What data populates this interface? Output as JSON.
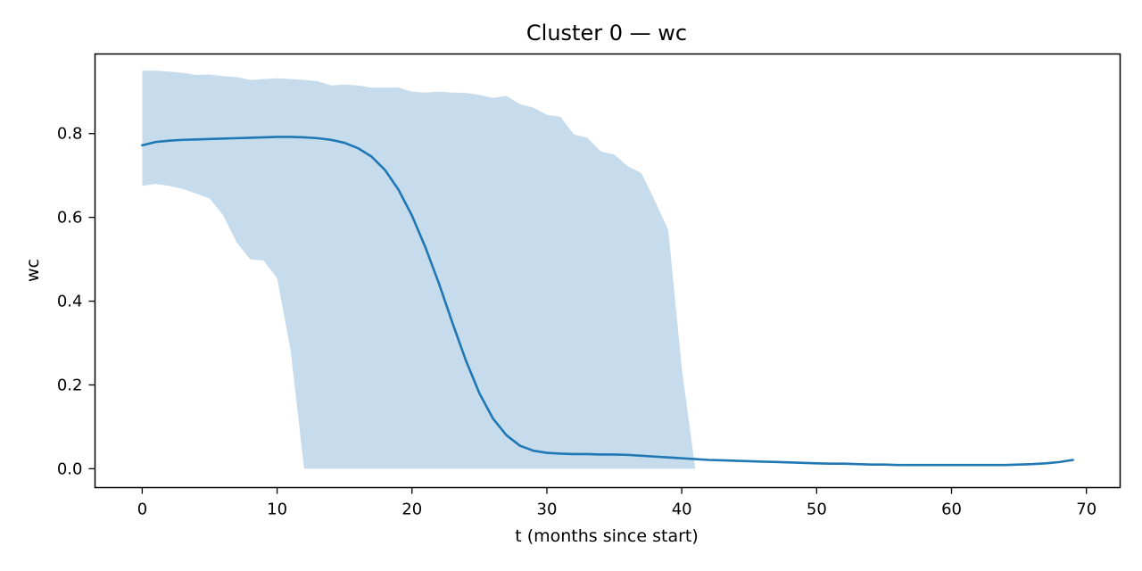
{
  "chart_data": {
    "type": "line",
    "title": "Cluster 0 — wc",
    "xlabel": "t (months since start)",
    "ylabel": "wc",
    "xlim": [
      -3.5,
      72.5
    ],
    "ylim": [
      -0.045,
      0.99
    ],
    "xticks": [
      0,
      10,
      20,
      30,
      40,
      50,
      60,
      70
    ],
    "yticks": [
      0.0,
      0.2,
      0.4,
      0.6,
      0.8
    ],
    "ytick_labels": [
      "0.0",
      "0.2",
      "0.4",
      "0.6",
      "0.8"
    ],
    "grid": false,
    "legend": "none",
    "colors": {
      "line": "#1f77b4",
      "band": "#c6dbec",
      "axes": "#000000"
    },
    "series": [
      {
        "type": "band",
        "x": [
          0,
          1,
          2,
          3,
          4,
          5,
          6,
          7,
          8,
          9,
          10,
          11,
          12,
          13,
          14,
          15,
          16,
          17,
          18,
          19,
          20,
          21,
          22,
          23,
          24,
          25,
          26,
          27,
          28,
          29,
          30,
          31,
          32,
          33,
          34,
          35,
          36,
          37,
          38,
          39,
          40,
          41
        ],
        "upper": [
          0.95,
          0.95,
          0.948,
          0.945,
          0.94,
          0.941,
          0.937,
          0.935,
          0.928,
          0.93,
          0.932,
          0.93,
          0.928,
          0.925,
          0.915,
          0.917,
          0.915,
          0.91,
          0.91,
          0.91,
          0.9,
          0.898,
          0.9,
          0.898,
          0.897,
          0.892,
          0.885,
          0.89,
          0.87,
          0.862,
          0.845,
          0.84,
          0.798,
          0.79,
          0.757,
          0.75,
          0.722,
          0.706,
          0.64,
          0.57,
          0.24,
          0.0
        ],
        "lower": [
          0.675,
          0.68,
          0.675,
          0.668,
          0.657,
          0.645,
          0.605,
          0.54,
          0.5,
          0.497,
          0.455,
          0.283,
          0.0,
          0.0,
          0.0,
          0.0,
          0.0,
          0.0,
          0.0,
          0.0,
          0.0,
          0.0,
          0.0,
          0.0,
          0.0,
          0.0,
          0.0,
          0.0,
          0.0,
          0.0,
          0.0,
          0.0,
          0.0,
          0.0,
          0.0,
          0.0,
          0.0,
          0.0,
          0.0,
          0.0,
          0.0,
          0.0
        ]
      },
      {
        "type": "line",
        "x": [
          0,
          1,
          2,
          3,
          4,
          5,
          6,
          7,
          8,
          9,
          10,
          11,
          12,
          13,
          14,
          15,
          16,
          17,
          18,
          19,
          20,
          21,
          22,
          23,
          24,
          25,
          26,
          27,
          28,
          29,
          30,
          31,
          32,
          33,
          34,
          35,
          36,
          37,
          38,
          39,
          40,
          41,
          42,
          43,
          44,
          45,
          46,
          47,
          48,
          49,
          50,
          51,
          52,
          53,
          54,
          55,
          56,
          57,
          58,
          59,
          60,
          61,
          62,
          63,
          64,
          65,
          66,
          67,
          68,
          69
        ],
        "values": [
          0.772,
          0.78,
          0.783,
          0.785,
          0.786,
          0.787,
          0.788,
          0.789,
          0.79,
          0.791,
          0.792,
          0.792,
          0.791,
          0.789,
          0.785,
          0.778,
          0.765,
          0.745,
          0.713,
          0.666,
          0.604,
          0.528,
          0.442,
          0.348,
          0.258,
          0.18,
          0.12,
          0.08,
          0.055,
          0.043,
          0.038,
          0.036,
          0.035,
          0.035,
          0.034,
          0.034,
          0.033,
          0.031,
          0.029,
          0.027,
          0.025,
          0.023,
          0.021,
          0.02,
          0.019,
          0.018,
          0.017,
          0.016,
          0.015,
          0.014,
          0.013,
          0.012,
          0.012,
          0.011,
          0.01,
          0.01,
          0.009,
          0.009,
          0.009,
          0.009,
          0.009,
          0.009,
          0.009,
          0.009,
          0.009,
          0.01,
          0.011,
          0.013,
          0.016,
          0.021
        ]
      }
    ]
  }
}
